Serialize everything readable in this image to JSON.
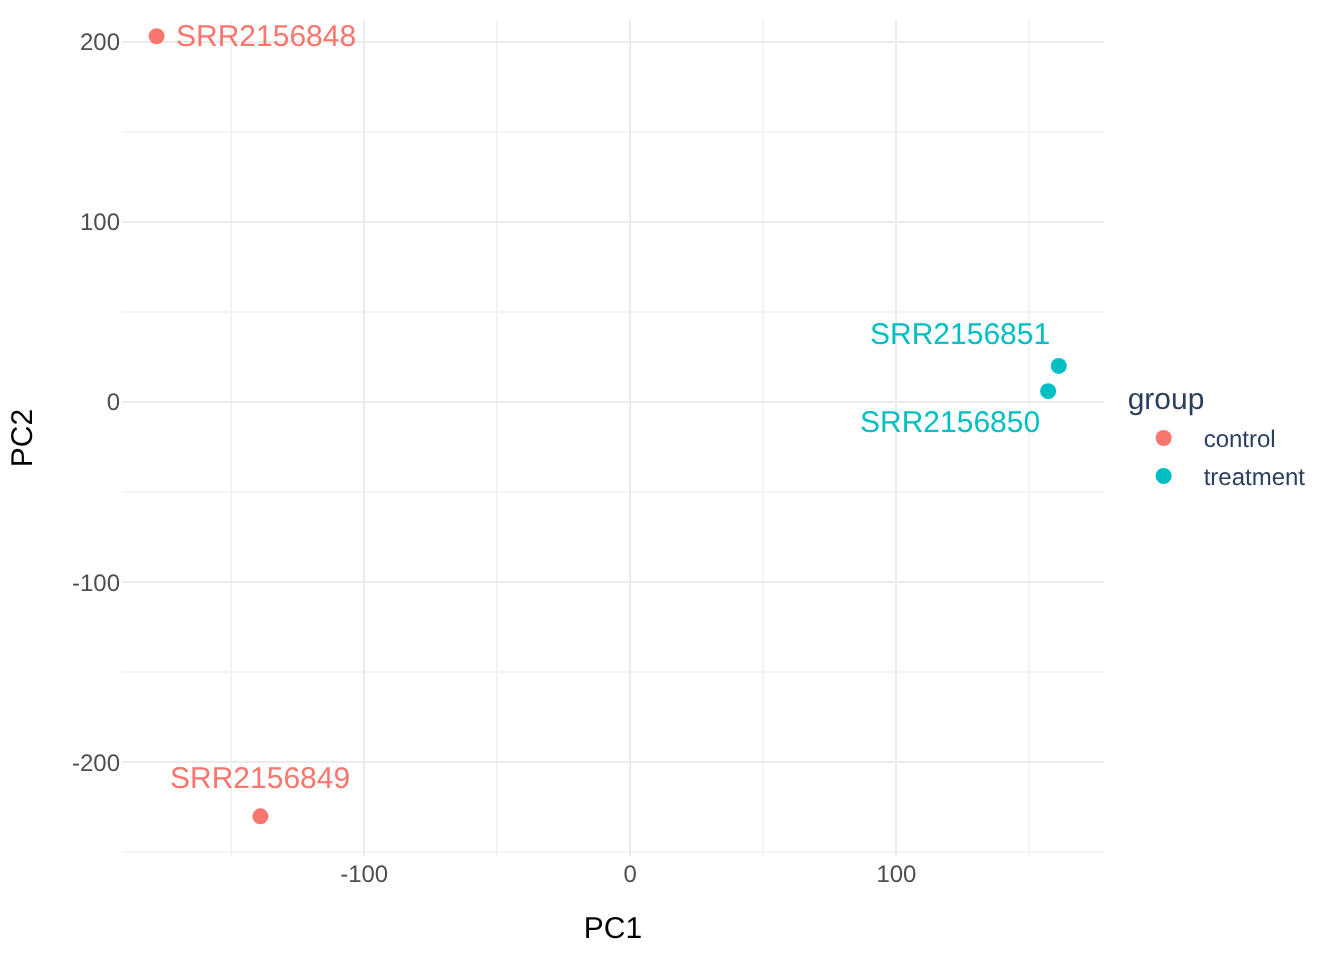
{
  "chart_data": {
    "type": "scatter",
    "xlabel": "PC1",
    "ylabel": "PC2",
    "legend_title": "group",
    "legend": "right",
    "grid": true,
    "marker": "circle",
    "xlim": [
      -191,
      178
    ],
    "ylim": [
      -252,
      212
    ],
    "xticks": [
      -100,
      0,
      100
    ],
    "yticks": [
      -200,
      -100,
      0,
      100,
      200
    ],
    "series": [
      {
        "name": "control",
        "color": "#f8766d",
        "x": [
          -178,
          -139
        ],
        "values": [
          203,
          -230
        ]
      },
      {
        "name": "treatment",
        "color": "#00bfc4",
        "x": [
          161,
          157
        ],
        "values": [
          20,
          6
        ]
      }
    ],
    "annotations": [
      {
        "text": "SRR2156848",
        "x": -178,
        "y": 203
      },
      {
        "text": "SRR2156849",
        "x": -139,
        "y": -230
      },
      {
        "text": "SRR2156851",
        "x": 161,
        "y": 20
      },
      {
        "text": "SRR2156850",
        "x": 157,
        "y": 6
      }
    ]
  }
}
